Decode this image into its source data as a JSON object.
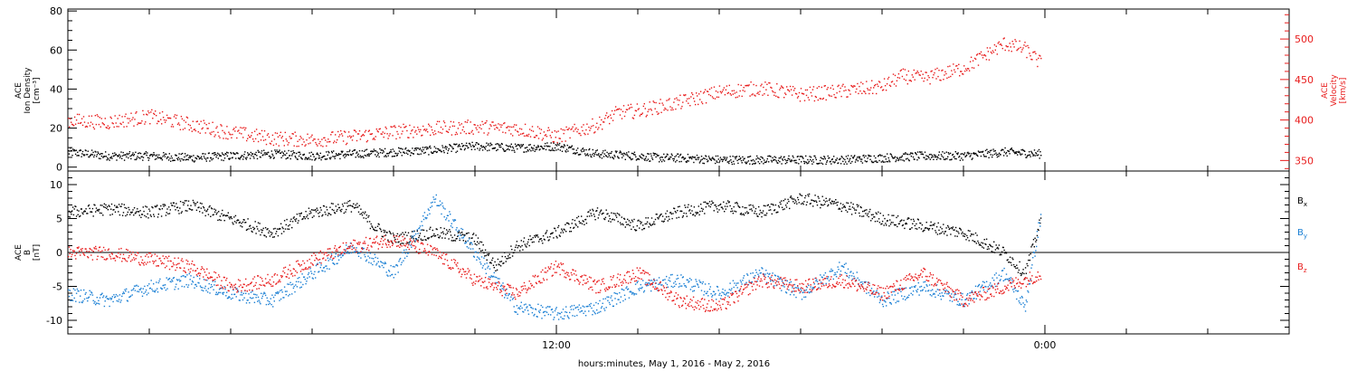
{
  "chart_data": [
    {
      "type": "scatter",
      "panel": "plasma",
      "y_label_lines": [
        "ACE",
        "Ion Density",
        "[cm⁻³]"
      ],
      "y2_label_lines": [
        "ACE",
        "Velocity",
        "[km/s]"
      ],
      "ylim": [
        -2,
        81
      ],
      "yticks": [
        0,
        20,
        40,
        60,
        80
      ],
      "y2lim": [
        337,
        537
      ],
      "y2ticks": [
        350,
        400,
        450,
        500
      ],
      "series": [
        {
          "color": "#000000",
          "axis": "left",
          "x": [
            0,
            1,
            2,
            3,
            4,
            5,
            6,
            7,
            8,
            9,
            10,
            11,
            12,
            13,
            14,
            14.5,
            15,
            16,
            17,
            18,
            19,
            20,
            21,
            22,
            23,
            23.9
          ],
          "y": [
            8,
            6,
            6,
            5,
            6,
            7,
            6,
            7,
            8,
            9,
            11,
            10,
            11,
            7,
            6,
            5,
            5,
            4,
            4,
            4,
            4,
            5,
            6,
            6,
            8,
            7
          ]
        },
        {
          "color": "#e81b1b",
          "axis": "right",
          "x": [
            0,
            1,
            2,
            3,
            4,
            5,
            6,
            7,
            8,
            9,
            10,
            11,
            11.5,
            12,
            13,
            13.5,
            14,
            15,
            16,
            17,
            18,
            19,
            20,
            20.5,
            21,
            21.5,
            22,
            22.5,
            23,
            23.5,
            23.9
          ],
          "y": [
            400,
            398,
            405,
            395,
            385,
            378,
            376,
            380,
            386,
            390,
            392,
            390,
            386,
            380,
            395,
            410,
            412,
            422,
            435,
            440,
            432,
            436,
            442,
            455,
            452,
            458,
            465,
            480,
            495,
            488,
            470
          ]
        }
      ]
    },
    {
      "type": "scatter",
      "panel": "magnetic-field",
      "y_label_lines": [
        "ACE",
        "B",
        "[nT]"
      ],
      "ylim": [
        -12,
        12
      ],
      "yticks": [
        -10,
        -5,
        0,
        5,
        10
      ],
      "series": [
        {
          "name": "B",
          "sub": "x",
          "color": "#000000",
          "x": [
            0,
            1,
            2,
            3,
            4,
            5,
            6,
            7,
            7.5,
            8,
            9,
            10,
            10.5,
            11,
            12,
            13,
            14,
            15,
            16,
            17,
            18,
            19,
            20,
            21,
            22,
            23,
            23.5,
            23.9
          ],
          "y": [
            6,
            6.5,
            6,
            7,
            5,
            3,
            6,
            7,
            4,
            2,
            3,
            2,
            -2,
            1,
            3,
            6,
            4,
            6,
            7,
            6,
            8,
            7,
            5,
            4,
            3,
            0,
            -3,
            5
          ]
        },
        {
          "name": "B",
          "sub": "y",
          "color": "#1a7fd4",
          "x": [
            0,
            1,
            2,
            3,
            4,
            5,
            6,
            7,
            8,
            9,
            10,
            11,
            12,
            13,
            14,
            15,
            16,
            17,
            18,
            19,
            20,
            21,
            22,
            23,
            23.5,
            23.9
          ],
          "y": [
            -6,
            -7,
            -5,
            -4,
            -6,
            -7,
            -3,
            1,
            -3,
            8,
            0,
            -8,
            -9,
            -8,
            -5,
            -4,
            -6,
            -3,
            -6,
            -2,
            -7,
            -5,
            -7,
            -3,
            -8,
            6
          ]
        },
        {
          "name": "B",
          "sub": "z",
          "color": "#e81b1b",
          "x": [
            0,
            1,
            2,
            3,
            4,
            5,
            6,
            7,
            8,
            9,
            10,
            11,
            12,
            13,
            14,
            15,
            16,
            17,
            18,
            19,
            20,
            21,
            22,
            23,
            23.5,
            23.9
          ],
          "y": [
            0,
            0,
            -1,
            -2,
            -5,
            -4,
            -1,
            1,
            2,
            0,
            -4,
            -6,
            -2,
            -5,
            -3,
            -7,
            -8,
            -4,
            -5,
            -4,
            -6,
            -3,
            -7,
            -5,
            -4,
            -3
          ]
        }
      ]
    }
  ],
  "x_axis": {
    "x_range_hours": [
      -12,
      18
    ],
    "tick_labels": [
      {
        "at": 0,
        "label": "12:00"
      },
      {
        "at": 12,
        "label": "0:00"
      }
    ],
    "xlabel": "hours:minutes, May  1, 2016 - May  2, 2016"
  }
}
